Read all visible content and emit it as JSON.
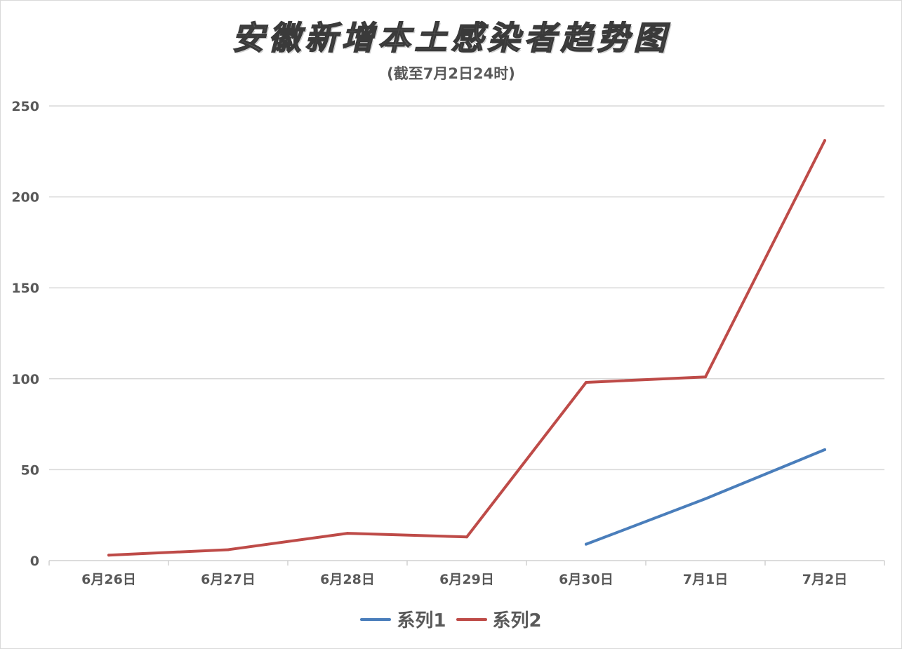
{
  "chart_data": {
    "type": "line",
    "title": "安徽新增本土感染者趋势图",
    "subtitle": "(截至7月2日24时)",
    "categories": [
      "6月26日",
      "6月27日",
      "6月28日",
      "6月29日",
      "6月30日",
      "7月1日",
      "7月2日"
    ],
    "series": [
      {
        "name": "系列1",
        "color": "#4a7ebb",
        "values": [
          null,
          null,
          null,
          null,
          9,
          34,
          61
        ]
      },
      {
        "name": "系列2",
        "color": "#be4b48",
        "values": [
          3,
          6,
          15,
          13,
          98,
          101,
          231
        ]
      }
    ],
    "yticks": [
      0,
      50,
      100,
      150,
      200,
      250
    ],
    "ylim": [
      0,
      250
    ],
    "grid": "horizontal",
    "legend": "bottom-center"
  }
}
